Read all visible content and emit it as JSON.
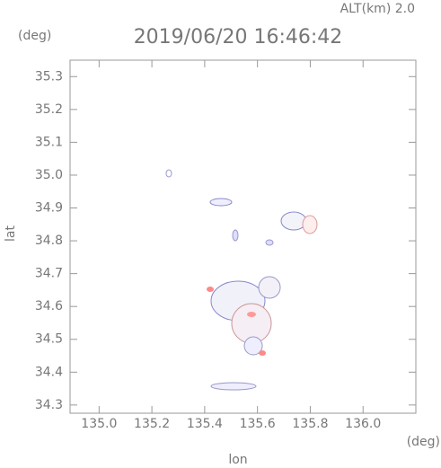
{
  "chart_data": {
    "type": "map",
    "title": "2019/06/20 16:46:42",
    "altitude_label": "ALT(km) 2.0",
    "x_label": "lon",
    "x_unit": "(deg)",
    "y_label": "lat",
    "y_unit": "(deg)",
    "xlim": [
      134.89,
      136.2
    ],
    "xticks": [
      {
        "value": 135,
        "label": "135.0"
      },
      135.2,
      135.4,
      135.6,
      135.8,
      {
        "value": 136,
        "label": "136.0"
      }
    ],
    "ylim": [
      34.275,
      35.35
    ],
    "yticks": [
      34.3,
      34.4,
      34.5,
      34.6,
      34.7,
      34.8,
      34.9,
      {
        "value": 35,
        "label": "35.0"
      },
      35.1,
      35.2,
      35.3
    ]
  }
}
